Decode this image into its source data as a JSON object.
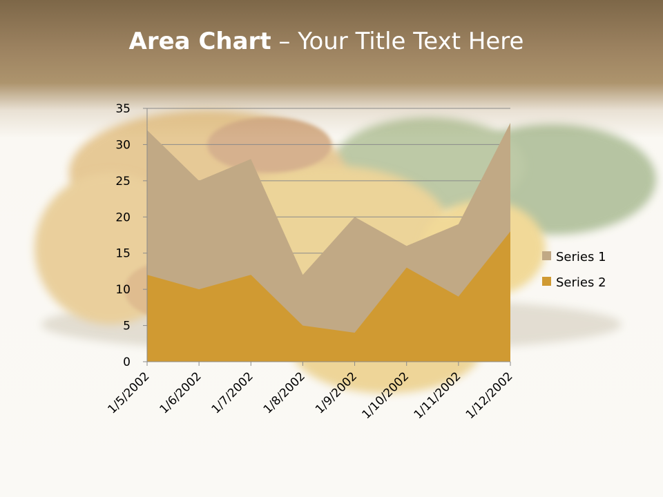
{
  "slide": {
    "title_bold": "Area Chart",
    "title_rest": " – Your Title Text Here"
  },
  "colors": {
    "series1": "#c1a985",
    "series2": "#d09a32",
    "gridline": "#8a8a8a",
    "axis": "#8a8a8a"
  },
  "chart_data": {
    "type": "area",
    "stacked": false,
    "categories": [
      "1/5/2002",
      "1/6/2002",
      "1/7/2002",
      "1/8/2002",
      "1/9/2002",
      "1/10/2002",
      "1/11/2002",
      "1/12/2002"
    ],
    "series": [
      {
        "name": "Series 1",
        "values": [
          32,
          25,
          28,
          12,
          20,
          16,
          19,
          33
        ]
      },
      {
        "name": "Series 2",
        "values": [
          12,
          10,
          12,
          5,
          4,
          13,
          9,
          18
        ]
      }
    ],
    "ylim": [
      0,
      35
    ],
    "yticks": [
      0,
      5,
      10,
      15,
      20,
      25,
      30,
      35
    ],
    "grid": true,
    "legend": "right"
  }
}
